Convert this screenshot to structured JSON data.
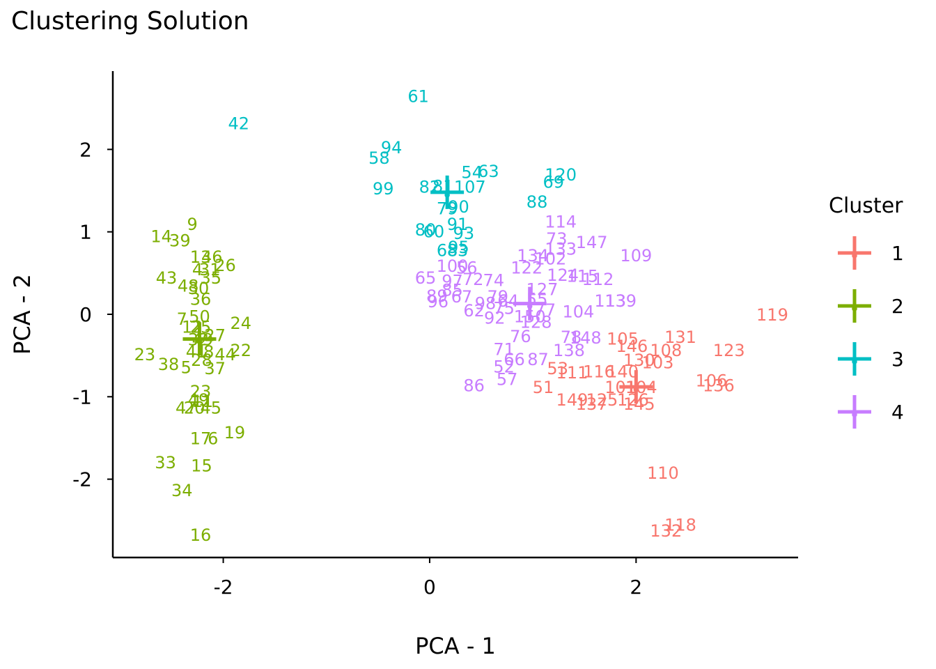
{
  "chart_data": {
    "type": "scatter",
    "title": "Clustering Solution",
    "xlabel": "PCA - 1",
    "ylabel": "PCA - 2",
    "xlim": [
      -3.07,
      3.57
    ],
    "ylim": [
      -2.95,
      2.95
    ],
    "x_ticks": [
      -2,
      0,
      2
    ],
    "x_tick_labels": [
      "-2",
      "0",
      "2"
    ],
    "y_ticks": [
      -2,
      -1,
      0,
      1,
      2
    ],
    "y_tick_labels": [
      "-2",
      "-1",
      "0",
      "1",
      "2"
    ],
    "legend": {
      "title": "Cluster",
      "position": "right",
      "entries": [
        {
          "label": "1",
          "color": "#F8766D"
        },
        {
          "label": "2",
          "color": "#7CAE00"
        },
        {
          "label": "3",
          "color": "#00BFC4"
        },
        {
          "label": "4",
          "color": "#C77CFF"
        }
      ]
    },
    "series": [
      {
        "name": "1",
        "color": "#F8766D",
        "centroid": [
          2.0,
          -0.88
        ],
        "points": [
          {
            "label": "119",
            "x": 3.32,
            "y": 0.0
          },
          {
            "label": "131",
            "x": 2.43,
            "y": -0.27
          },
          {
            "label": "123",
            "x": 2.9,
            "y": -0.43
          },
          {
            "label": "105",
            "x": 1.87,
            "y": -0.29
          },
          {
            "label": "146",
            "x": 1.96,
            "y": -0.38
          },
          {
            "label": "108",
            "x": 2.29,
            "y": -0.43
          },
          {
            "label": "130",
            "x": 2.03,
            "y": -0.55
          },
          {
            "label": "103",
            "x": 2.21,
            "y": -0.58
          },
          {
            "label": "53",
            "x": 1.24,
            "y": -0.65
          },
          {
            "label": "111",
            "x": 1.38,
            "y": -0.7
          },
          {
            "label": "116",
            "x": 1.64,
            "y": -0.69
          },
          {
            "label": "140",
            "x": 1.87,
            "y": -0.69
          },
          {
            "label": "106",
            "x": 2.73,
            "y": -0.8
          },
          {
            "label": "136",
            "x": 2.8,
            "y": -0.86
          },
          {
            "label": "51",
            "x": 1.1,
            "y": -0.88
          },
          {
            "label": "101",
            "x": 1.85,
            "y": -0.88
          },
          {
            "label": "104",
            "x": 2.05,
            "y": -0.88
          },
          {
            "label": "149",
            "x": 1.38,
            "y": -1.03
          },
          {
            "label": "125",
            "x": 1.67,
            "y": -1.03
          },
          {
            "label": "126",
            "x": 1.97,
            "y": -1.03
          },
          {
            "label": "137",
            "x": 1.57,
            "y": -1.08
          },
          {
            "label": "145",
            "x": 2.03,
            "y": -1.08
          },
          {
            "label": "110",
            "x": 2.26,
            "y": -1.92
          },
          {
            "label": "118",
            "x": 2.43,
            "y": -2.55
          },
          {
            "label": "132",
            "x": 2.29,
            "y": -2.62
          }
        ]
      },
      {
        "name": "2",
        "color": "#7CAE00",
        "centroid": [
          -2.23,
          -0.3
        ],
        "points": [
          {
            "label": "9",
            "x": -2.3,
            "y": 1.1
          },
          {
            "label": "14",
            "x": -2.6,
            "y": 0.95
          },
          {
            "label": "39",
            "x": -2.42,
            "y": 0.9
          },
          {
            "label": "13",
            "x": -2.22,
            "y": 0.7
          },
          {
            "label": "46",
            "x": -2.11,
            "y": 0.7
          },
          {
            "label": "26",
            "x": -1.98,
            "y": 0.6
          },
          {
            "label": "4",
            "x": -2.25,
            "y": 0.55
          },
          {
            "label": "31",
            "x": -2.13,
            "y": 0.55
          },
          {
            "label": "43",
            "x": -2.55,
            "y": 0.45
          },
          {
            "label": "35",
            "x": -2.12,
            "y": 0.45
          },
          {
            "label": "48",
            "x": -2.34,
            "y": 0.35
          },
          {
            "label": "30",
            "x": -2.24,
            "y": 0.32
          },
          {
            "label": "36",
            "x": -2.22,
            "y": 0.19
          },
          {
            "label": "7",
            "x": -2.4,
            "y": -0.05
          },
          {
            "label": "50",
            "x": -2.23,
            "y": -0.02
          },
          {
            "label": "24",
            "x": -1.83,
            "y": -0.1
          },
          {
            "label": "12",
            "x": -2.3,
            "y": -0.15
          },
          {
            "label": "25",
            "x": -2.22,
            "y": -0.15
          },
          {
            "label": "32",
            "x": -2.24,
            "y": -0.3
          },
          {
            "label": "27",
            "x": -2.08,
            "y": -0.25
          },
          {
            "label": "49",
            "x": -2.2,
            "y": -0.3
          },
          {
            "label": "41",
            "x": -2.26,
            "y": -0.45
          },
          {
            "label": "8",
            "x": -2.14,
            "y": -0.45
          },
          {
            "label": "44",
            "x": -1.98,
            "y": -0.48
          },
          {
            "label": "22",
            "x": -1.83,
            "y": -0.43
          },
          {
            "label": "23",
            "x": -2.76,
            "y": -0.48
          },
          {
            "label": "38",
            "x": -2.53,
            "y": -0.6
          },
          {
            "label": "5",
            "x": -2.36,
            "y": -0.64
          },
          {
            "label": "28",
            "x": -2.21,
            "y": -0.55
          },
          {
            "label": "37",
            "x": -2.08,
            "y": -0.65
          },
          {
            "label": "23",
            "x": -2.22,
            "y": -0.93
          },
          {
            "label": "49",
            "x": -2.24,
            "y": -1.03
          },
          {
            "label": "11",
            "x": -2.2,
            "y": -1.05
          },
          {
            "label": "47",
            "x": -2.36,
            "y": -1.13
          },
          {
            "label": "20",
            "x": -2.28,
            "y": -1.13
          },
          {
            "label": "45",
            "x": -2.12,
            "y": -1.13
          },
          {
            "label": "17",
            "x": -2.22,
            "y": -1.5
          },
          {
            "label": "6",
            "x": -2.1,
            "y": -1.5
          },
          {
            "label": "19",
            "x": -1.89,
            "y": -1.43
          },
          {
            "label": "33",
            "x": -2.56,
            "y": -1.79
          },
          {
            "label": "15",
            "x": -2.21,
            "y": -1.83
          },
          {
            "label": "34",
            "x": -2.4,
            "y": -2.13
          },
          {
            "label": "16",
            "x": -2.22,
            "y": -2.67
          }
        ]
      },
      {
        "name": "3",
        "color": "#00BFC4",
        "centroid": [
          0.17,
          1.48
        ],
        "points": [
          {
            "label": "61",
            "x": -0.11,
            "y": 2.65
          },
          {
            "label": "42",
            "x": -1.85,
            "y": 2.32
          },
          {
            "label": "94",
            "x": -0.37,
            "y": 2.03
          },
          {
            "label": "58",
            "x": -0.49,
            "y": 1.9
          },
          {
            "label": "54",
            "x": 0.41,
            "y": 1.73
          },
          {
            "label": "63",
            "x": 0.57,
            "y": 1.74
          },
          {
            "label": "120",
            "x": 1.27,
            "y": 1.7
          },
          {
            "label": "69",
            "x": 1.2,
            "y": 1.61
          },
          {
            "label": "99",
            "x": -0.45,
            "y": 1.53
          },
          {
            "label": "82",
            "x": 0.0,
            "y": 1.55
          },
          {
            "label": "81",
            "x": 0.13,
            "y": 1.56
          },
          {
            "label": "107",
            "x": 0.39,
            "y": 1.55
          },
          {
            "label": "88",
            "x": 1.04,
            "y": 1.37
          },
          {
            "label": "79",
            "x": 0.17,
            "y": 1.29
          },
          {
            "label": "90",
            "x": 0.28,
            "y": 1.31
          },
          {
            "label": "91",
            "x": 0.27,
            "y": 1.1
          },
          {
            "label": "80",
            "x": -0.04,
            "y": 1.03
          },
          {
            "label": "60",
            "x": 0.04,
            "y": 1.01
          },
          {
            "label": "93",
            "x": 0.33,
            "y": 0.99
          },
          {
            "label": "95",
            "x": 0.28,
            "y": 0.82
          },
          {
            "label": "68",
            "x": 0.17,
            "y": 0.78
          },
          {
            "label": "83",
            "x": 0.27,
            "y": 0.78
          }
        ]
      },
      {
        "name": "4",
        "color": "#C77CFF",
        "centroid": [
          0.97,
          0.13
        ],
        "points": [
          {
            "label": "114",
            "x": 1.27,
            "y": 1.13
          },
          {
            "label": "73",
            "x": 1.23,
            "y": 0.92
          },
          {
            "label": "147",
            "x": 1.57,
            "y": 0.88
          },
          {
            "label": "133",
            "x": 1.27,
            "y": 0.8
          },
          {
            "label": "109",
            "x": 2.0,
            "y": 0.72
          },
          {
            "label": "134",
            "x": 1.0,
            "y": 0.72
          },
          {
            "label": "102",
            "x": 1.17,
            "y": 0.68
          },
          {
            "label": "122",
            "x": 0.94,
            "y": 0.57
          },
          {
            "label": "100",
            "x": 0.22,
            "y": 0.59
          },
          {
            "label": "56",
            "x": 0.36,
            "y": 0.57
          },
          {
            "label": "124",
            "x": 1.29,
            "y": 0.48
          },
          {
            "label": "115",
            "x": 1.48,
            "y": 0.47
          },
          {
            "label": "112",
            "x": 1.63,
            "y": 0.43
          },
          {
            "label": "65",
            "x": -0.04,
            "y": 0.45
          },
          {
            "label": "97",
            "x": 0.22,
            "y": 0.41
          },
          {
            "label": "72",
            "x": 0.42,
            "y": 0.43
          },
          {
            "label": "74",
            "x": 0.62,
            "y": 0.42
          },
          {
            "label": "85",
            "x": 0.22,
            "y": 0.3
          },
          {
            "label": "127",
            "x": 1.09,
            "y": 0.31
          },
          {
            "label": "89",
            "x": 0.07,
            "y": 0.23
          },
          {
            "label": "67",
            "x": 0.31,
            "y": 0.22
          },
          {
            "label": "79",
            "x": 0.66,
            "y": 0.22
          },
          {
            "label": "64",
            "x": 0.76,
            "y": 0.17
          },
          {
            "label": "55",
            "x": 1.04,
            "y": 0.19
          },
          {
            "label": "96",
            "x": 0.08,
            "y": 0.16
          },
          {
            "label": "98",
            "x": 0.54,
            "y": 0.14
          },
          {
            "label": "139",
            "x": 1.85,
            "y": 0.17
          },
          {
            "label": "113",
            "x": 1.75,
            "y": 0.17
          },
          {
            "label": "62",
            "x": 0.43,
            "y": 0.05
          },
          {
            "label": "75",
            "x": 0.72,
            "y": 0.08
          },
          {
            "label": "77",
            "x": 1.12,
            "y": 0.06
          },
          {
            "label": "104",
            "x": 1.44,
            "y": 0.04
          },
          {
            "label": "92",
            "x": 0.63,
            "y": -0.04
          },
          {
            "label": "150",
            "x": 0.97,
            "y": -0.02
          },
          {
            "label": "128",
            "x": 1.03,
            "y": -0.09
          },
          {
            "label": "76",
            "x": 0.88,
            "y": -0.26
          },
          {
            "label": "78",
            "x": 1.37,
            "y": -0.27
          },
          {
            "label": "148",
            "x": 1.51,
            "y": -0.28
          },
          {
            "label": "138",
            "x": 1.35,
            "y": -0.43
          },
          {
            "label": "71",
            "x": 0.72,
            "y": -0.42
          },
          {
            "label": "66",
            "x": 0.82,
            "y": -0.54
          },
          {
            "label": "87",
            "x": 1.05,
            "y": -0.54
          },
          {
            "label": "52",
            "x": 0.72,
            "y": -0.63
          },
          {
            "label": "57",
            "x": 0.75,
            "y": -0.78
          },
          {
            "label": "86",
            "x": 0.43,
            "y": -0.86
          }
        ]
      }
    ]
  }
}
